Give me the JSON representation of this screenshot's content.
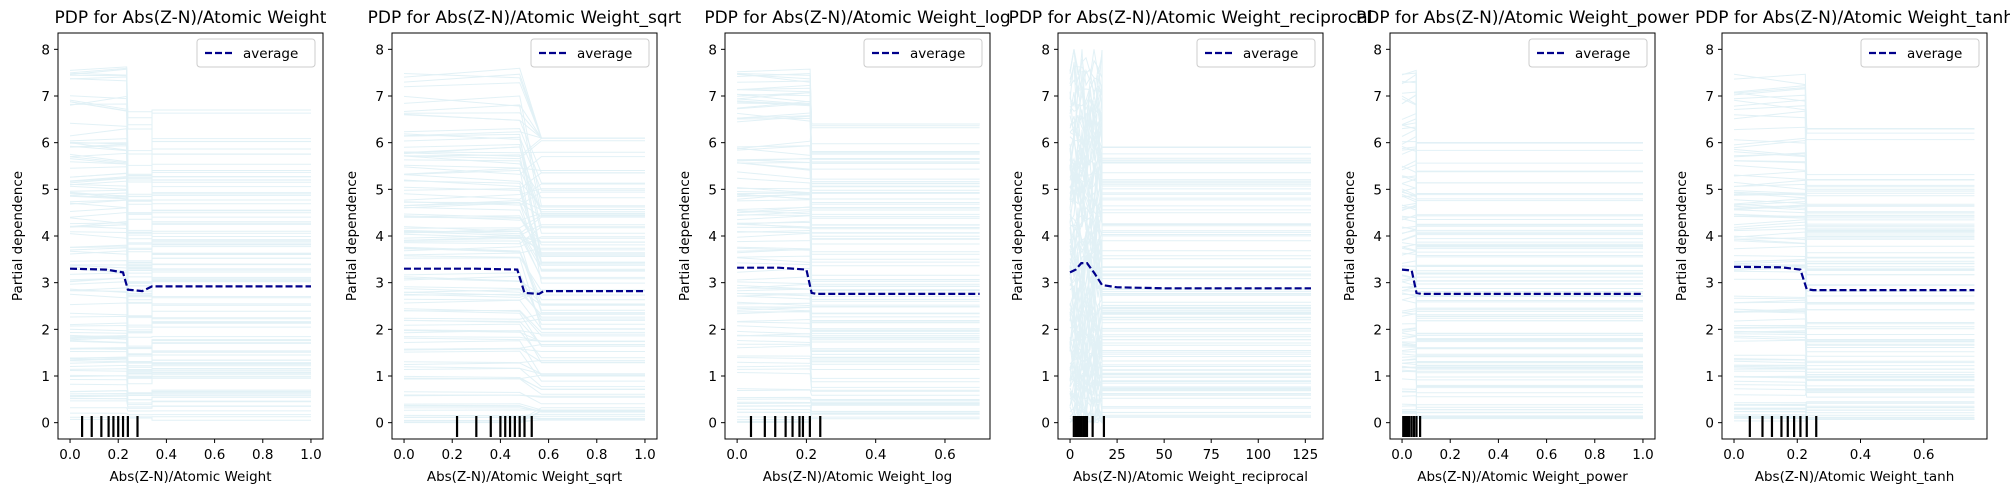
{
  "colors": {
    "ice": "#add8e6",
    "average": "#00008b",
    "rug": "#000000",
    "axis": "#000000"
  },
  "chart_data": [
    {
      "type": "line",
      "title": "PDP for Abs(Z-N)/Atomic Weight",
      "xlabel": "Abs(Z-N)/Atomic Weight",
      "ylabel": "Partial dependence",
      "xlim": [
        -0.05,
        1.05
      ],
      "ylim": [
        -0.35,
        8.35
      ],
      "xticks": [
        0.0,
        0.2,
        0.4,
        0.6,
        0.8,
        1.0
      ],
      "xtick_labels": [
        "0.0",
        "0.2",
        "0.4",
        "0.6",
        "0.8",
        "1.0"
      ],
      "yticks": [
        0,
        1,
        2,
        3,
        4,
        5,
        6,
        7,
        8
      ],
      "ytick_labels": [
        "0",
        "1",
        "2",
        "3",
        "4",
        "5",
        "6",
        "7",
        "8"
      ],
      "legend": {
        "label": "average",
        "position": "top-right"
      },
      "series": [
        {
          "name": "average",
          "x": [
            0.0,
            0.15,
            0.22,
            0.24,
            0.26,
            0.3,
            0.34,
            1.0
          ],
          "y": [
            3.3,
            3.28,
            3.22,
            2.85,
            2.84,
            2.82,
            2.92,
            2.92
          ]
        }
      ],
      "rug": [
        0.05,
        0.09,
        0.13,
        0.16,
        0.18,
        0.2,
        0.22,
        0.24,
        0.28
      ],
      "ice": {
        "switch_x": 0.24,
        "switch2_x": 0.34,
        "left_max": 7.7,
        "right_max": 6.7,
        "mid_low": true
      }
    },
    {
      "type": "line",
      "title": "PDP for Abs(Z-N)/Atomic Weight_sqrt",
      "xlabel": "Abs(Z-N)/Atomic Weight_sqrt",
      "ylabel": "Partial dependence",
      "xlim": [
        -0.05,
        1.05
      ],
      "ylim": [
        -0.35,
        8.35
      ],
      "xticks": [
        0.0,
        0.2,
        0.4,
        0.6,
        0.8,
        1.0
      ],
      "xtick_labels": [
        "0.0",
        "0.2",
        "0.4",
        "0.6",
        "0.8",
        "1.0"
      ],
      "yticks": [
        0,
        1,
        2,
        3,
        4,
        5,
        6,
        7,
        8
      ],
      "ytick_labels": [
        "0",
        "1",
        "2",
        "3",
        "4",
        "5",
        "6",
        "7",
        "8"
      ],
      "legend": {
        "label": "average",
        "position": "top-right"
      },
      "series": [
        {
          "name": "average",
          "x": [
            0.0,
            0.3,
            0.47,
            0.5,
            0.56,
            0.58,
            1.0
          ],
          "y": [
            3.3,
            3.3,
            3.28,
            2.78,
            2.76,
            2.82,
            2.82
          ]
        }
      ],
      "rug": [
        0.22,
        0.3,
        0.36,
        0.4,
        0.42,
        0.44,
        0.46,
        0.48,
        0.5,
        0.53
      ],
      "ice": {
        "switch_x": 0.49,
        "switch2_x": 0.57,
        "left_max": 7.5,
        "right_max": 6.1,
        "mid_low": false
      }
    },
    {
      "type": "line",
      "title": "PDP for Abs(Z-N)/Atomic Weight_log",
      "xlabel": "Abs(Z-N)/Atomic Weight_log",
      "ylabel": "Partial dependence",
      "xlim": [
        -0.035,
        0.73
      ],
      "ylim": [
        -0.35,
        8.35
      ],
      "xticks": [
        0.0,
        0.2,
        0.4,
        0.6
      ],
      "xtick_labels": [
        "0.0",
        "0.2",
        "0.4",
        "0.6"
      ],
      "yticks": [
        0,
        1,
        2,
        3,
        4,
        5,
        6,
        7,
        8
      ],
      "ytick_labels": [
        "0",
        "1",
        "2",
        "3",
        "4",
        "5",
        "6",
        "7",
        "8"
      ],
      "legend": {
        "label": "average",
        "position": "top-right"
      },
      "series": [
        {
          "name": "average",
          "x": [
            0.0,
            0.12,
            0.2,
            0.215,
            0.23,
            0.7
          ],
          "y": [
            3.32,
            3.32,
            3.28,
            2.78,
            2.76,
            2.76
          ]
        }
      ],
      "rug": [
        0.04,
        0.08,
        0.11,
        0.14,
        0.16,
        0.18,
        0.19,
        0.21,
        0.24
      ],
      "ice": {
        "switch_x": 0.215,
        "switch2_x": 0.215,
        "left_max": 7.8,
        "right_max": 6.4,
        "mid_low": false
      }
    },
    {
      "type": "line",
      "title": "PDP for Abs(Z-N)/Atomic Weight_reciprocal",
      "xlabel": "Abs(Z-N)/Atomic Weight_reciprocal",
      "ylabel": "Partial dependence",
      "xlim": [
        -6.4,
        134.4
      ],
      "ylim": [
        -0.35,
        8.35
      ],
      "xticks": [
        0,
        25,
        50,
        75,
        100,
        125
      ],
      "xtick_labels": [
        "0",
        "25",
        "50",
        "75",
        "100",
        "125"
      ],
      "yticks": [
        0,
        1,
        2,
        3,
        4,
        5,
        6,
        7,
        8
      ],
      "ytick_labels": [
        "0",
        "1",
        "2",
        "3",
        "4",
        "5",
        "6",
        "7",
        "8"
      ],
      "legend": {
        "label": "average",
        "position": "top-right"
      },
      "series": [
        {
          "name": "average",
          "x": [
            0.0,
            3.0,
            6.0,
            9.0,
            13.0,
            17.0,
            25.0,
            50.0,
            128.0
          ],
          "y": [
            3.22,
            3.28,
            3.42,
            3.42,
            3.2,
            2.95,
            2.9,
            2.88,
            2.88
          ]
        }
      ],
      "rug": [
        2.0,
        3.0,
        4.0,
        5.0,
        6.0,
        7.0,
        8.0,
        9.0,
        12.0,
        18.0
      ],
      "ice": {
        "switch_x": 17.0,
        "switch2_x": 17.0,
        "left_max": 7.8,
        "right_max": 5.9,
        "mid_low": false,
        "spiky": true
      }
    },
    {
      "type": "line",
      "title": "PDP for Abs(Z-N)/Atomic Weight_power",
      "xlabel": "Abs(Z-N)/Atomic Weight_power",
      "ylabel": "Partial dependence",
      "xlim": [
        -0.05,
        1.05
      ],
      "ylim": [
        -0.35,
        8.35
      ],
      "xticks": [
        0.0,
        0.2,
        0.4,
        0.6,
        0.8,
        1.0
      ],
      "xtick_labels": [
        "0.0",
        "0.2",
        "0.4",
        "0.6",
        "0.8",
        "1.0"
      ],
      "yticks": [
        0,
        1,
        2,
        3,
        4,
        5,
        6,
        7,
        8
      ],
      "ytick_labels": [
        "0",
        "1",
        "2",
        "3",
        "4",
        "5",
        "6",
        "7",
        "8"
      ],
      "legend": {
        "label": "average",
        "position": "top-right"
      },
      "series": [
        {
          "name": "average",
          "x": [
            0.0,
            0.04,
            0.06,
            0.08,
            1.0
          ],
          "y": [
            3.28,
            3.26,
            2.78,
            2.76,
            2.76
          ]
        }
      ],
      "rug": [
        0.005,
        0.01,
        0.015,
        0.02,
        0.025,
        0.03,
        0.04,
        0.05,
        0.06,
        0.075
      ],
      "ice": {
        "switch_x": 0.06,
        "switch2_x": 0.06,
        "left_max": 7.5,
        "right_max": 6.0,
        "mid_low": false
      }
    },
    {
      "type": "line",
      "title": "PDP for Abs(Z-N)/Atomic Weight_tanh",
      "xlabel": "Abs(Z-N)/Atomic Weight_tanh",
      "ylabel": "Partial dependence",
      "xlim": [
        -0.038,
        0.8
      ],
      "ylim": [
        -0.35,
        8.35
      ],
      "xticks": [
        0.0,
        0.2,
        0.4,
        0.6
      ],
      "xtick_labels": [
        "0.0",
        "0.2",
        "0.4",
        "0.6"
      ],
      "yticks": [
        0,
        1,
        2,
        3,
        4,
        5,
        6,
        7,
        8
      ],
      "ytick_labels": [
        "0",
        "1",
        "2",
        "3",
        "4",
        "5",
        "6",
        "7",
        "8"
      ],
      "legend": {
        "label": "average",
        "position": "top-right"
      },
      "series": [
        {
          "name": "average",
          "x": [
            0.0,
            0.15,
            0.21,
            0.23,
            0.25,
            0.76
          ],
          "y": [
            3.34,
            3.33,
            3.28,
            2.86,
            2.84,
            2.84
          ]
        }
      ],
      "rug": [
        0.05,
        0.09,
        0.12,
        0.15,
        0.17,
        0.19,
        0.21,
        0.23,
        0.26
      ],
      "ice": {
        "switch_x": 0.23,
        "switch2_x": 0.23,
        "left_max": 7.5,
        "right_max": 6.3,
        "mid_low": false
      }
    }
  ]
}
